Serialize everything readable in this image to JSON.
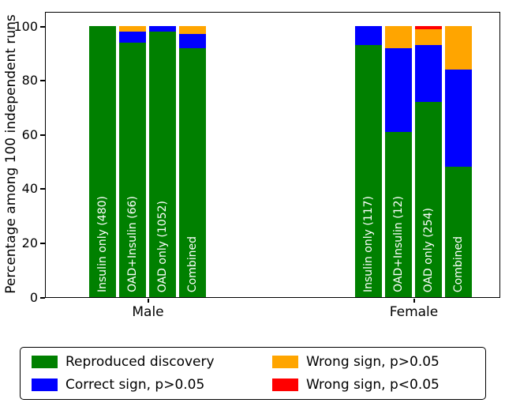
{
  "chart_data": {
    "type": "bar",
    "stacked": true,
    "title": "",
    "xlabel": "",
    "ylabel": "Percentage among 100 independent runs",
    "ylim": [
      0,
      105
    ],
    "yticks": [
      0,
      20,
      40,
      60,
      80,
      100
    ],
    "grid": false,
    "legend_position": "below",
    "series": [
      {
        "key": "reproduced",
        "label": "Reproduced discovery",
        "color": "#008000"
      },
      {
        "key": "correct-ns",
        "label": "Correct sign, p>0.05",
        "color": "#0000ff"
      },
      {
        "key": "wrong-ns",
        "label": "Wrong sign, p>0.05",
        "color": "#ffa500"
      },
      {
        "key": "wrong-sig",
        "label": "Wrong sign, p<0.05",
        "color": "#ff0000"
      }
    ],
    "groups": [
      {
        "label": "Male",
        "bars": [
          {
            "label": "Insulin only (480)",
            "values": [
              100,
              0,
              0,
              0
            ]
          },
          {
            "label": "OAD+Insulin (66)",
            "values": [
              94,
              4,
              2,
              0
            ]
          },
          {
            "label": "OAD only (1052)",
            "values": [
              98,
              2,
              0,
              0
            ]
          },
          {
            "label": "Combined",
            "values": [
              92,
              5,
              3,
              0
            ]
          }
        ]
      },
      {
        "label": "Female",
        "bars": [
          {
            "label": "Insulin only (117)",
            "values": [
              93,
              7,
              0,
              0
            ]
          },
          {
            "label": "OAD+Insulin (12)",
            "values": [
              61,
              31,
              8,
              0
            ]
          },
          {
            "label": "OAD only (254)",
            "values": [
              72,
              21,
              6,
              1
            ]
          },
          {
            "label": "Combined",
            "values": [
              48,
              36,
              16,
              0
            ]
          }
        ]
      }
    ]
  }
}
